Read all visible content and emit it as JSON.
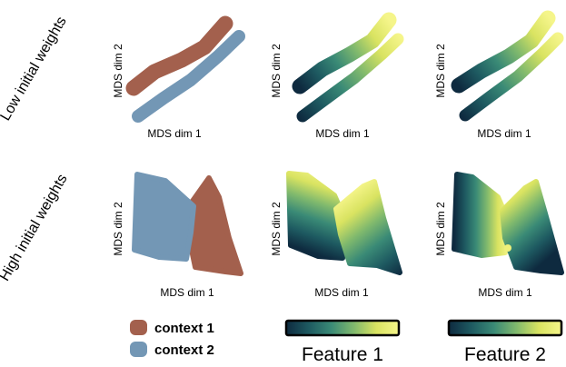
{
  "row_labels": {
    "low": "Low initial weights",
    "high": "High initial weights"
  },
  "axis_labels": {
    "x": "MDS dim 1",
    "y": "MDS dim 2"
  },
  "legend": {
    "context1": {
      "label": "context 1",
      "color": "#a3604d"
    },
    "context2": {
      "label": "context 2",
      "color": "#7397b5"
    }
  },
  "colorbars": {
    "feature1": "Feature 1",
    "feature2": "Feature 2"
  },
  "colormap": [
    "#0e2a3f",
    "#1e5a61",
    "#3a8a76",
    "#80b96d",
    "#d9e361",
    "#f5f58a"
  ]
}
